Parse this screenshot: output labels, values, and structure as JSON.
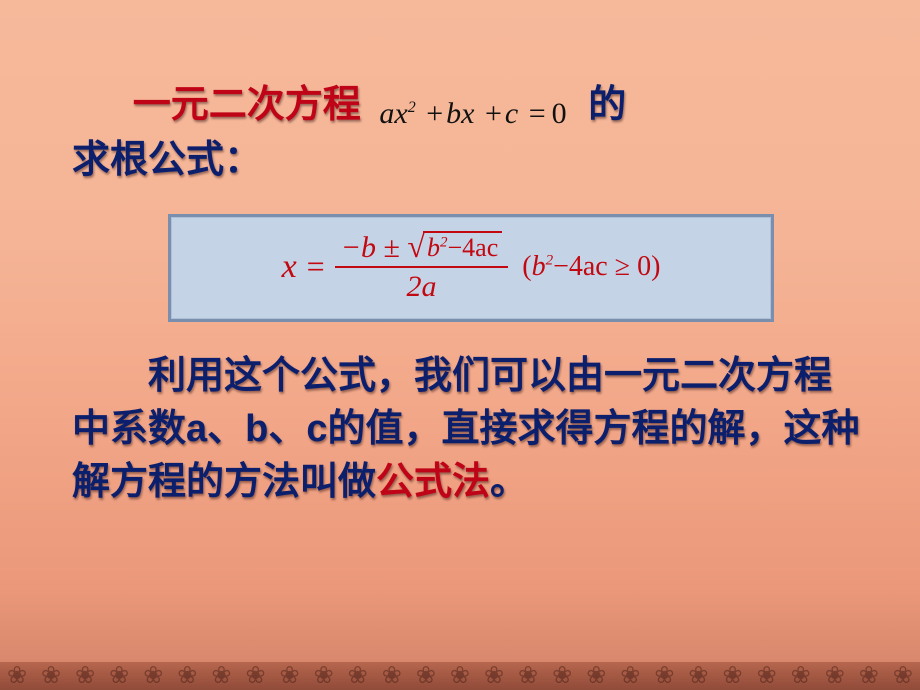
{
  "intro": {
    "title_prefix": "一元二次方程",
    "equation": {
      "a": "a",
      "x": "x",
      "sq": "2",
      "b": "b",
      "c": "c",
      "eq": "=",
      "zero": "0",
      "plus": "+"
    },
    "title_suffix": "的",
    "line2": "求根公式："
  },
  "formula": {
    "x": "x",
    "eq": "=",
    "num_minus_b": "−b",
    "num_pm": "±",
    "disc_b2": "b",
    "disc_sq": "2",
    "disc_rest": "−4ac",
    "den": "2a",
    "cond_open": "(",
    "cond_b2": "b",
    "cond_sq": "2",
    "cond_rest": "−4ac",
    "cond_ge": "≥",
    "cond_zero": "0",
    "cond_close": ")",
    "box": {
      "bg_color": "#c5d3e6",
      "border_color": "#7a8fae",
      "text_color": "#c20810"
    }
  },
  "body": {
    "seg1": "利用这个公式，我们可以由一元二次方程中系数a、b、c的值，直接求得方程的解，这种解方程的方法叫做",
    "seg2_highlight": "公式法",
    "seg3": "。"
  },
  "style": {
    "navy": "#0b1f6d",
    "red": "#c00418",
    "black": "#111111",
    "font_size_main": 38,
    "gradient_top": "#f6b99a",
    "gradient_bottom": "#d28268"
  },
  "decor": {
    "glyph": "❀",
    "count": 27
  }
}
